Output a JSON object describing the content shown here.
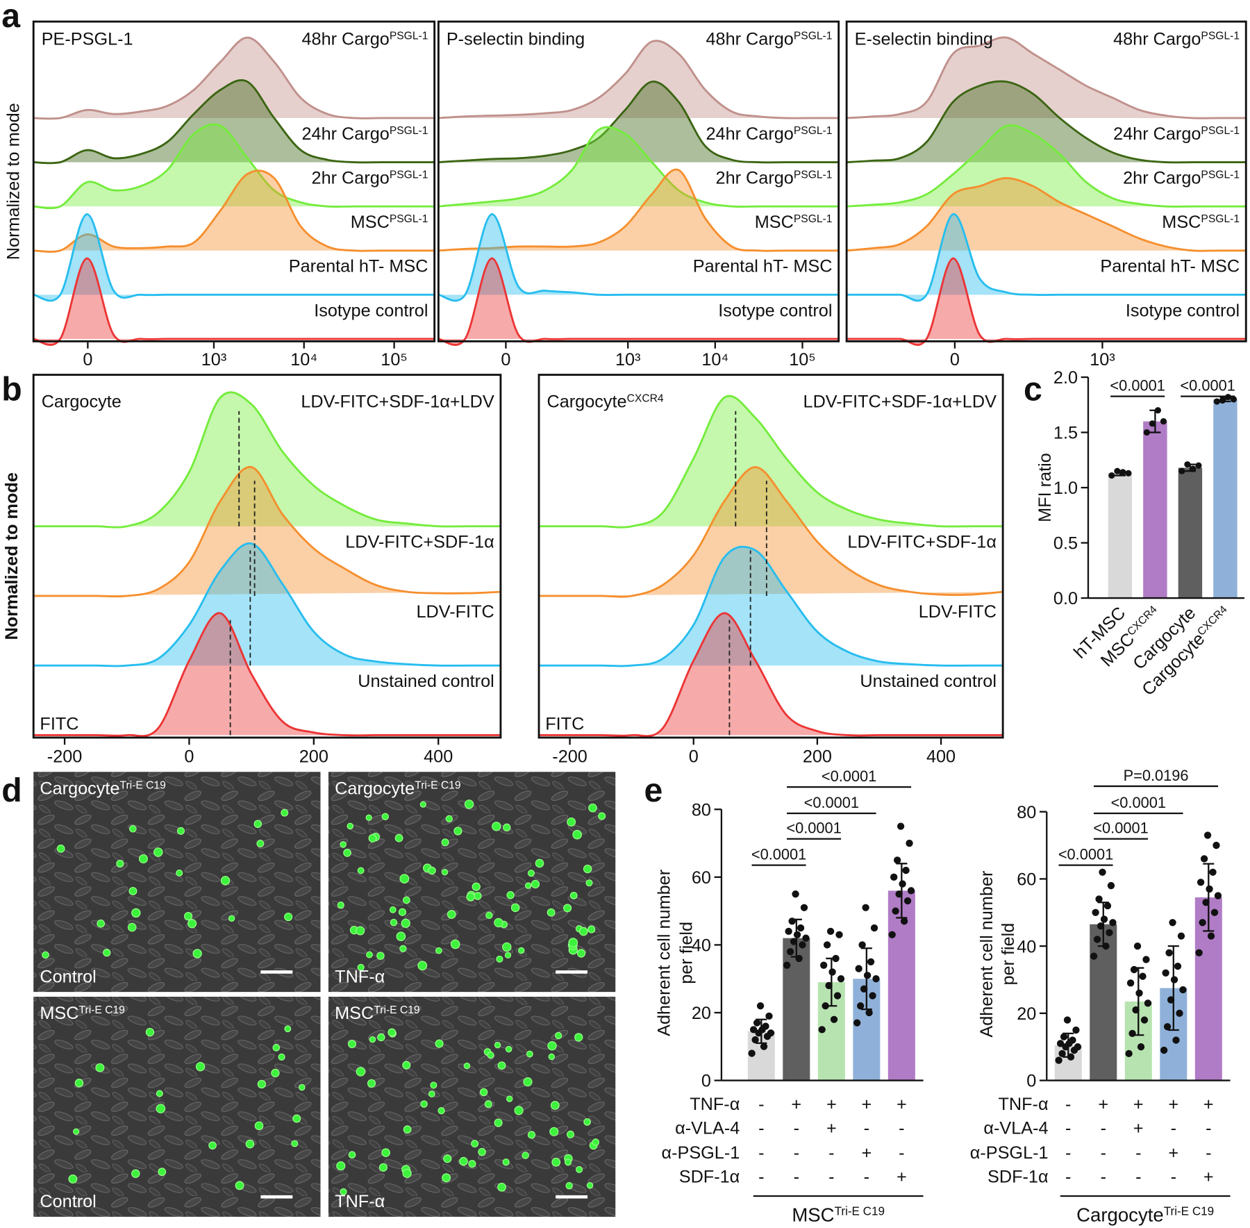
{
  "panel_labels": [
    "a",
    "b",
    "c",
    "d",
    "e"
  ],
  "chart_data": [
    {
      "type": "ridgeline",
      "title": "PE-PSGL-1",
      "ylabel": "Normalized to mode",
      "xscale": "logicle",
      "xlim": [
        -150,
        280000
      ],
      "xticks": [
        0,
        {
          "value": 1000,
          "label": "10³"
        },
        {
          "value": 10000,
          "label": "10⁴"
        },
        {
          "value": 100000,
          "label": "10⁵"
        }
      ],
      "series": [
        {
          "name": "48hr Cargo",
          "sup": "PSGL-1",
          "color": "#c0908b",
          "values": [
            0,
            0,
            10,
            5,
            8,
            15,
            35,
            70,
            100,
            70,
            25,
            5,
            0,
            0,
            0,
            0
          ]
        },
        {
          "name": "24hr Cargo",
          "sup": "PSGL-1",
          "color": "#3b6512",
          "values": [
            0,
            0,
            15,
            5,
            10,
            25,
            60,
            90,
            100,
            55,
            15,
            3,
            0,
            0,
            0,
            0
          ]
        },
        {
          "name": "2hr Cargo",
          "sup": "PSGL-1",
          "color": "#74ec3c",
          "values": [
            0,
            0,
            30,
            20,
            25,
            45,
            90,
            100,
            60,
            20,
            5,
            0,
            0,
            0,
            0,
            0
          ]
        },
        {
          "name": "MSC",
          "sup": "PSGL-1",
          "color": "#f58f2e",
          "values": [
            0,
            0,
            20,
            5,
            3,
            5,
            10,
            50,
            95,
            90,
            30,
            5,
            0,
            0,
            0,
            0
          ]
        },
        {
          "name": "Parental hT- MSC",
          "color": "#27bdee",
          "values": [
            0,
            0,
            100,
            5,
            0,
            0,
            0,
            0,
            0,
            0,
            0,
            0,
            0,
            0,
            0,
            0
          ]
        },
        {
          "name": "Isotype control",
          "color": "#ec3535",
          "values": [
            0,
            0,
            100,
            5,
            0,
            0,
            0,
            0,
            0,
            0,
            0,
            0,
            0,
            0,
            0,
            0
          ]
        }
      ]
    },
    {
      "type": "ridgeline",
      "title": "P-selectin binding",
      "xscale": "logicle",
      "xlim": [
        -230,
        260000
      ],
      "xticks": [
        0,
        {
          "value": 1000,
          "label": "10³"
        },
        {
          "value": 10000,
          "label": "10⁴"
        },
        {
          "value": 100000,
          "label": "10⁵"
        }
      ],
      "series": [
        {
          "name": "48hr Cargo",
          "sup": "PSGL-1",
          "color": "#c0908b",
          "values": [
            0,
            2,
            3,
            4,
            6,
            10,
            25,
            55,
            95,
            80,
            35,
            8,
            2,
            0,
            0,
            0
          ]
        },
        {
          "name": "24hr Cargo",
          "sup": "PSGL-1",
          "color": "#3b6512",
          "values": [
            0,
            2,
            4,
            5,
            8,
            15,
            30,
            65,
            100,
            75,
            20,
            3,
            0,
            0,
            0,
            0
          ]
        },
        {
          "name": "2hr Cargo",
          "sup": "PSGL-1",
          "color": "#74ec3c",
          "values": [
            0,
            3,
            6,
            10,
            20,
            45,
            95,
            90,
            55,
            20,
            5,
            0,
            0,
            0,
            0,
            0
          ]
        },
        {
          "name": "MSC",
          "sup": "PSGL-1",
          "color": "#f58f2e",
          "values": [
            0,
            2,
            3,
            5,
            5,
            5,
            10,
            30,
            70,
            100,
            40,
            5,
            0,
            0,
            0,
            0
          ]
        },
        {
          "name": "Parental hT- MSC",
          "color": "#27bdee",
          "values": [
            0,
            0,
            100,
            10,
            5,
            3,
            0,
            0,
            0,
            0,
            0,
            0,
            0,
            0,
            0,
            0
          ]
        },
        {
          "name": "Isotype control",
          "color": "#ec3535",
          "values": [
            0,
            0,
            100,
            5,
            0,
            0,
            0,
            0,
            0,
            0,
            0,
            0,
            0,
            0,
            0,
            0
          ]
        }
      ]
    },
    {
      "type": "ridgeline",
      "title": "E-selectin binding",
      "xscale": "logicle",
      "xlim": [
        -420,
        23000
      ],
      "xticks": [
        0,
        {
          "value": 1000,
          "label": "10³"
        }
      ],
      "series": [
        {
          "name": "48hr Cargo",
          "sup": "PSGL-1",
          "color": "#c0908b",
          "values": [
            0,
            2,
            5,
            20,
            80,
            90,
            100,
            80,
            60,
            40,
            25,
            10,
            3,
            0,
            0,
            0
          ]
        },
        {
          "name": "24hr Cargo",
          "sup": "PSGL-1",
          "color": "#3b6512",
          "values": [
            0,
            2,
            5,
            25,
            75,
            95,
            100,
            85,
            55,
            30,
            12,
            3,
            0,
            0,
            0,
            0
          ]
        },
        {
          "name": "2hr Cargo",
          "sup": "PSGL-1",
          "color": "#74ec3c",
          "values": [
            0,
            2,
            5,
            15,
            40,
            70,
            100,
            90,
            65,
            30,
            10,
            3,
            0,
            0,
            0,
            0
          ]
        },
        {
          "name": "MSC",
          "sup": "PSGL-1",
          "color": "#f58f2e",
          "values": [
            0,
            3,
            8,
            30,
            70,
            80,
            90,
            80,
            60,
            45,
            30,
            15,
            5,
            0,
            0,
            0
          ]
        },
        {
          "name": "Parental hT- MSC",
          "color": "#27bdee",
          "values": [
            0,
            0,
            0,
            0,
            100,
            20,
            3,
            0,
            0,
            0,
            0,
            0,
            0,
            0,
            0,
            0
          ]
        },
        {
          "name": "Isotype control",
          "color": "#ec3535",
          "values": [
            0,
            0,
            0,
            0,
            100,
            5,
            0,
            0,
            0,
            0,
            0,
            0,
            0,
            0,
            0,
            0
          ]
        }
      ]
    },
    {
      "type": "ridgeline",
      "title": "Cargocyte",
      "ylabel": "Normalized to mode",
      "xlabel": "FITC",
      "xlim": [
        -250,
        500
      ],
      "xticks": [
        -200,
        0,
        200,
        400
      ],
      "series": [
        {
          "name": "LDV-FITC+SDF-1α+LDV",
          "color": "#74ec3c",
          "median": 80,
          "values": [
            0,
            0,
            0,
            0,
            10,
            40,
            95,
            90,
            55,
            30,
            15,
            5,
            2,
            0,
            0,
            0
          ]
        },
        {
          "name": "LDV-FITC+SDF-1α",
          "color": "#f58f2e",
          "median": 105,
          "values": [
            0,
            0,
            0,
            0,
            5,
            25,
            70,
            95,
            60,
            35,
            20,
            8,
            3,
            2,
            2,
            3
          ]
        },
        {
          "name": "LDV-FITC",
          "color": "#27bdee",
          "median": 98,
          "values": [
            0,
            0,
            0,
            0,
            5,
            30,
            70,
            90,
            60,
            25,
            8,
            3,
            1,
            0,
            0,
            0
          ]
        },
        {
          "name": "Unstained control",
          "color": "#ec3535",
          "median": 66,
          "values": [
            0,
            0,
            0,
            0,
            5,
            55,
            90,
            45,
            10,
            2,
            0,
            0,
            0,
            0,
            0,
            0
          ]
        }
      ]
    },
    {
      "type": "ridgeline",
      "title": "Cargocyte",
      "title_sup": "CXCR4",
      "xlabel": "FITC",
      "xlim": [
        -250,
        500
      ],
      "xticks": [
        -200,
        0,
        200,
        400
      ],
      "series": [
        {
          "name": "LDV-FITC+SDF-1α+LDV",
          "color": "#74ec3c",
          "median": 68,
          "values": [
            0,
            0,
            0,
            0,
            10,
            50,
            95,
            80,
            50,
            25,
            12,
            5,
            2,
            0,
            0,
            0
          ]
        },
        {
          "name": "LDV-FITC+SDF-1α",
          "color": "#f58f2e",
          "median": 118,
          "values": [
            0,
            0,
            0,
            0,
            8,
            30,
            70,
            95,
            70,
            40,
            20,
            8,
            3,
            1,
            1,
            3
          ]
        },
        {
          "name": "LDV-FITC",
          "color": "#27bdee",
          "median": 92,
          "values": [
            0,
            0,
            0,
            0,
            5,
            30,
            80,
            85,
            55,
            25,
            10,
            3,
            1,
            0,
            0,
            0
          ]
        },
        {
          "name": "Unstained control",
          "color": "#ec3535",
          "median": 58,
          "values": [
            0,
            0,
            0,
            0,
            5,
            55,
            90,
            55,
            15,
            3,
            0,
            0,
            0,
            0,
            0,
            0
          ]
        }
      ]
    },
    {
      "type": "bar",
      "ylabel": "MFI ratio",
      "categories": [
        "hT-MSC",
        "MSC",
        "Cargocyte",
        "Cargocyte"
      ],
      "category_sups": [
        null,
        "CXCR4",
        null,
        "CXCR4"
      ],
      "values": [
        1.13,
        1.6,
        1.18,
        1.8
      ],
      "errors": [
        0.02,
        0.1,
        0.03,
        0.02
      ],
      "points": [
        [
          1.11,
          1.13,
          1.14,
          1.15
        ],
        [
          1.5,
          1.6,
          1.7,
          1.58
        ],
        [
          1.15,
          1.2,
          1.17,
          1.21
        ],
        [
          1.78,
          1.8,
          1.82,
          1.79
        ]
      ],
      "colors": [
        "#d9d9d9",
        "#b07cc6",
        "#5f5f5f",
        "#8fb1d9"
      ],
      "ylim": [
        0,
        2
      ],
      "yticks": [
        {
          "value": 0,
          "label": "0.0"
        },
        0.5,
        {
          "value": 1,
          "label": "1.0"
        },
        1.5,
        {
          "value": 2,
          "label": "2.0"
        }
      ],
      "comparisons": [
        {
          "pair": [
            0,
            1
          ],
          "label": "<0.0001"
        },
        {
          "pair": [
            2,
            3
          ],
          "label": "<0.0001"
        }
      ]
    },
    {
      "type": "bar",
      "ylabel": [
        "Adherent cell number",
        "per field"
      ],
      "values": [
        14.5,
        42,
        29,
        30,
        56
      ],
      "errors": [
        3.5,
        5.5,
        7,
        9,
        8
      ],
      "points": [
        [
          8,
          10,
          12,
          13,
          14,
          14,
          15,
          15,
          16,
          17,
          19,
          22
        ],
        [
          34,
          36,
          38,
          40,
          41,
          42,
          43,
          44,
          45,
          47,
          51,
          55
        ],
        [
          15,
          18,
          22,
          25,
          28,
          30,
          32,
          34,
          36,
          40,
          43,
          44
        ],
        [
          17,
          20,
          22,
          25,
          27,
          30,
          31,
          33,
          35,
          40,
          45,
          51
        ],
        [
          43,
          47,
          50,
          53,
          55,
          56,
          58,
          60,
          62,
          65,
          70,
          75
        ]
      ],
      "colors": [
        "#d9d9d9",
        "#5f5f5f",
        "#b7e3b0",
        "#8fb1d9",
        "#b07cc6"
      ],
      "ylim": [
        0,
        80
      ],
      "yticks": [
        0,
        20,
        40,
        60,
        80
      ],
      "conditions": [
        {
          "name": "TNF-α",
          "signs": [
            "-",
            "+",
            "+",
            "+",
            "+"
          ]
        },
        {
          "name": "α-VLA-4",
          "signs": [
            "-",
            "-",
            "+",
            "-",
            "-"
          ]
        },
        {
          "name": "α-PSGL-1",
          "signs": [
            "-",
            "-",
            "-",
            "+",
            "-"
          ]
        },
        {
          "name": "SDF-1α",
          "signs": [
            "-",
            "-",
            "-",
            "-",
            "+"
          ]
        }
      ],
      "group": "MSC",
      "group_sup": "Tri-E C19",
      "comparisons": [
        {
          "pair": [
            0,
            1
          ],
          "label": "<0.0001"
        },
        {
          "pair": [
            1,
            2
          ],
          "label": "<0.0001"
        },
        {
          "pair": [
            1,
            3
          ],
          "label": "<0.0001"
        },
        {
          "pair": [
            1,
            4
          ],
          "label": "<0.0001"
        }
      ]
    },
    {
      "type": "bar",
      "ylabel": [
        "Adherent cell number",
        "per field"
      ],
      "values": [
        10.5,
        46.5,
        23.5,
        27.5,
        54.5
      ],
      "errors": [
        3.5,
        6.5,
        10,
        12.5,
        10
      ],
      "points": [
        [
          6,
          7,
          8,
          9,
          10,
          10,
          11,
          11,
          12,
          13,
          15,
          18
        ],
        [
          37,
          40,
          42,
          44,
          46,
          47,
          48,
          50,
          52,
          54,
          58,
          62
        ],
        [
          8,
          10,
          14,
          18,
          21,
          23,
          26,
          29,
          31,
          33,
          36,
          40
        ],
        [
          9,
          12,
          16,
          20,
          24,
          27,
          30,
          32,
          34,
          38,
          43,
          47
        ],
        [
          38,
          43,
          47,
          50,
          53,
          55,
          57,
          59,
          62,
          66,
          70,
          73
        ]
      ],
      "colors": [
        "#d9d9d9",
        "#5f5f5f",
        "#b7e3b0",
        "#8fb1d9",
        "#b07cc6"
      ],
      "ylim": [
        0,
        80
      ],
      "yticks": [
        0,
        20,
        40,
        60,
        80
      ],
      "conditions": [
        {
          "name": "TNF-α",
          "signs": [
            "-",
            "+",
            "+",
            "+",
            "+"
          ]
        },
        {
          "name": "α-VLA-4",
          "signs": [
            "-",
            "-",
            "+",
            "-",
            "-"
          ]
        },
        {
          "name": "α-PSGL-1",
          "signs": [
            "-",
            "-",
            "-",
            "+",
            "-"
          ]
        },
        {
          "name": "SDF-1α",
          "signs": [
            "-",
            "-",
            "-",
            "-",
            "+"
          ]
        }
      ],
      "group": "Cargocyte",
      "group_sup": "Tri-E C19",
      "comparisons": [
        {
          "pair": [
            0,
            1
          ],
          "label": "<0.0001"
        },
        {
          "pair": [
            1,
            2
          ],
          "label": "<0.0001"
        },
        {
          "pair": [
            1,
            3
          ],
          "label": "<0.0001"
        },
        {
          "pair": [
            1,
            4
          ],
          "label": "P=0.0196"
        }
      ]
    }
  ],
  "images": [
    {
      "title": "Cargocyte",
      "title_sup": "Tri-E C19",
      "label": "Control"
    },
    {
      "title": "Cargocyte",
      "title_sup": "Tri-E C19",
      "label": "TNF-α"
    },
    {
      "title": "MSC",
      "title_sup": "Tri-E C19",
      "label": "Control"
    },
    {
      "title": "MSC",
      "title_sup": "Tri-E C19",
      "label": "TNF-α"
    }
  ]
}
